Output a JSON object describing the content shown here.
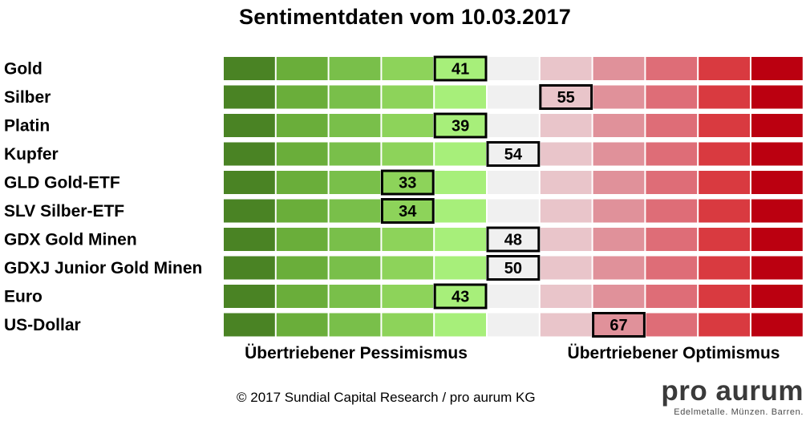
{
  "title": "Sentimentdaten vom 10.03.2017",
  "chart_data": {
    "type": "table",
    "title": "Sentimentdaten vom 10.03.2017",
    "scale": {
      "segments": 11,
      "colors": [
        "#4a8324",
        "#6aae3a",
        "#79bf4a",
        "#8dd35a",
        "#a7ef7a",
        "#f0f0f0",
        "#e9c5ca",
        "#e0919a",
        "#de6d77",
        "#d93a40",
        "#bb0010"
      ]
    },
    "rows": [
      {
        "label": "Gold",
        "value": 41
      },
      {
        "label": "Silber",
        "value": 55
      },
      {
        "label": "Platin",
        "value": 39
      },
      {
        "label": "Kupfer",
        "value": 54
      },
      {
        "label": "GLD Gold-ETF",
        "value": 33
      },
      {
        "label": "SLV Silber-ETF",
        "value": 34
      },
      {
        "label": "GDX Gold Minen",
        "value": 48
      },
      {
        "label": "GDXJ Junior Gold Minen",
        "value": 50
      },
      {
        "label": "Euro",
        "value": 43
      },
      {
        "label": "US-Dollar",
        "value": 67
      }
    ],
    "left_label": "Übertriebener Pessimismus",
    "right_label": "Übertriebener Optimismus"
  },
  "footer": {
    "copyright": "© 2017 Sundial Capital Research / pro aurum KG"
  },
  "brand": {
    "name": "pro aurum",
    "tagline": "Edelmetalle. Münzen. Barren."
  }
}
